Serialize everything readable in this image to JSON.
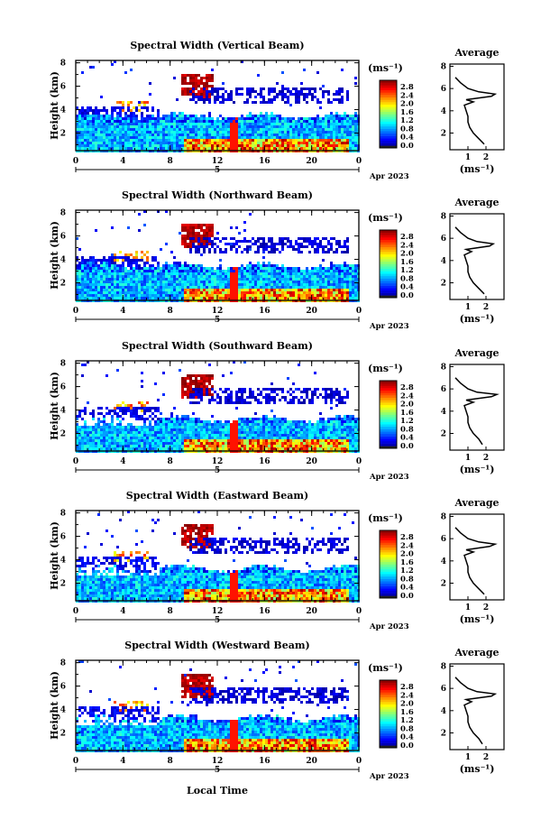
{
  "figure": {
    "date_day": "5",
    "date_label": "Apr 2023",
    "xlabel": "Local Time",
    "ylabel": "Height (km)",
    "colorbar_unit": "(ms⁻¹)",
    "average_title": "Average",
    "average_xlabel": "(ms⁻¹)"
  },
  "chart_data": [
    {
      "type": "heatmap",
      "title": "Spectral Width (Vertical Beam)",
      "xlabel": "Local Time",
      "ylabel": "Height (km)",
      "xlim": [
        0,
        24
      ],
      "ylim": [
        0.5,
        8.2
      ],
      "xticks": [
        "0",
        "4",
        "8",
        "12",
        "16",
        "20",
        "0"
      ],
      "yticks": [
        "2",
        "4",
        "6",
        "8"
      ],
      "colorbar": {
        "label": "(ms⁻¹)",
        "range": [
          0,
          2.8
        ],
        "ticks": [
          "2.8",
          "2.4",
          "2.0",
          "1.6",
          "1.2",
          "0.8",
          "0.4",
          "0.0"
        ]
      },
      "average_profile": {
        "title": "Average",
        "xlabel": "(ms⁻¹)",
        "xticks": [
          "1",
          "2"
        ],
        "yticks": [
          "2",
          "4",
          "6",
          "8"
        ],
        "height_km": [
          1.0,
          1.5,
          2.0,
          2.5,
          3.0,
          3.5,
          4.0,
          4.5,
          4.8,
          5.0,
          5.3,
          5.5,
          5.7,
          6.0,
          6.5,
          7.0
        ],
        "width_ms": [
          1.9,
          1.6,
          1.3,
          1.1,
          1.0,
          1.0,
          0.9,
          0.8,
          1.3,
          0.9,
          2.3,
          2.5,
          1.6,
          1.0,
          0.6,
          0.3
        ]
      }
    },
    {
      "type": "heatmap",
      "title": "Spectral Width (Northward Beam)",
      "xlabel": "Local Time",
      "ylabel": "Height (km)",
      "xlim": [
        0,
        24
      ],
      "ylim": [
        0.5,
        8.2
      ],
      "xticks": [
        "0",
        "4",
        "8",
        "12",
        "16",
        "20",
        "0"
      ],
      "yticks": [
        "2",
        "4",
        "6",
        "8"
      ],
      "colorbar": {
        "label": "(ms⁻¹)",
        "range": [
          0,
          2.8
        ],
        "ticks": [
          "2.8",
          "2.4",
          "2.0",
          "1.6",
          "1.2",
          "0.8",
          "0.4",
          "0.0"
        ]
      },
      "average_profile": {
        "title": "Average",
        "xlabel": "(ms⁻¹)",
        "xticks": [
          "1",
          "2"
        ],
        "yticks": [
          "2",
          "4",
          "6",
          "8"
        ],
        "height_km": [
          1.0,
          1.5,
          2.0,
          2.5,
          3.0,
          3.5,
          4.0,
          4.5,
          4.8,
          5.0,
          5.3,
          5.5,
          5.7,
          6.0,
          6.5,
          7.0
        ],
        "width_ms": [
          1.9,
          1.6,
          1.3,
          1.1,
          1.0,
          1.0,
          0.9,
          0.8,
          1.2,
          0.9,
          2.2,
          2.4,
          1.5,
          1.0,
          0.6,
          0.3
        ]
      }
    },
    {
      "type": "heatmap",
      "title": "Spectral Width (Southward Beam)",
      "xlabel": "Local Time",
      "ylabel": "Height (km)",
      "xlim": [
        0,
        24
      ],
      "ylim": [
        0.5,
        8.2
      ],
      "xticks": [
        "0",
        "4",
        "8",
        "12",
        "16",
        "20",
        "0"
      ],
      "yticks": [
        "2",
        "4",
        "6",
        "8"
      ],
      "colorbar": {
        "label": "(ms⁻¹)",
        "range": [
          0,
          2.8
        ],
        "ticks": [
          "2.8",
          "2.4",
          "2.0",
          "1.6",
          "1.2",
          "0.8",
          "0.4",
          "0.0"
        ]
      },
      "average_profile": {
        "title": "Average",
        "xlabel": "(ms⁻¹)",
        "xticks": [
          "1",
          "2"
        ],
        "yticks": [
          "2",
          "4",
          "6",
          "8"
        ],
        "height_km": [
          1.0,
          1.5,
          2.0,
          2.5,
          3.0,
          3.5,
          4.0,
          4.5,
          4.8,
          5.0,
          5.3,
          5.5,
          5.7,
          6.0,
          6.5,
          7.0
        ],
        "width_ms": [
          1.8,
          1.6,
          1.3,
          1.1,
          1.0,
          1.0,
          0.9,
          0.8,
          1.3,
          0.9,
          2.3,
          2.6,
          1.5,
          1.0,
          0.6,
          0.3
        ]
      }
    },
    {
      "type": "heatmap",
      "title": "Spectral Width (Eastward Beam)",
      "xlabel": "Local Time",
      "ylabel": "Height (km)",
      "xlim": [
        0,
        24
      ],
      "ylim": [
        0.5,
        8.2
      ],
      "xticks": [
        "0",
        "4",
        "8",
        "12",
        "16",
        "20",
        "0"
      ],
      "yticks": [
        "2",
        "4",
        "6",
        "8"
      ],
      "colorbar": {
        "label": "(ms⁻¹)",
        "range": [
          0,
          2.8
        ],
        "ticks": [
          "2.8",
          "2.4",
          "2.0",
          "1.6",
          "1.2",
          "0.8",
          "0.4",
          "0.0"
        ]
      },
      "average_profile": {
        "title": "Average",
        "xlabel": "(ms⁻¹)",
        "xticks": [
          "1",
          "2"
        ],
        "yticks": [
          "2",
          "4",
          "6",
          "8"
        ],
        "height_km": [
          1.0,
          1.5,
          2.0,
          2.5,
          3.0,
          3.5,
          4.0,
          4.5,
          4.8,
          5.0,
          5.3,
          5.5,
          5.7,
          6.0,
          6.5,
          7.0
        ],
        "width_ms": [
          1.9,
          1.6,
          1.3,
          1.1,
          1.0,
          1.0,
          0.9,
          0.8,
          1.3,
          0.9,
          2.2,
          2.5,
          1.6,
          1.0,
          0.6,
          0.3
        ]
      }
    },
    {
      "type": "heatmap",
      "title": "Spectral Width (Westward Beam)",
      "xlabel": "Local Time",
      "ylabel": "Height (km)",
      "xlim": [
        0,
        24
      ],
      "ylim": [
        0.5,
        8.2
      ],
      "xticks": [
        "0",
        "4",
        "8",
        "12",
        "16",
        "20",
        "0"
      ],
      "yticks": [
        "2",
        "4",
        "6",
        "8"
      ],
      "colorbar": {
        "label": "(ms⁻¹)",
        "range": [
          0,
          2.8
        ],
        "ticks": [
          "2.8",
          "2.4",
          "2.0",
          "1.6",
          "1.2",
          "0.8",
          "0.4",
          "0.0"
        ]
      },
      "average_profile": {
        "title": "Average",
        "xlabel": "(ms⁻¹)",
        "xticks": [
          "1",
          "2"
        ],
        "yticks": [
          "2",
          "4",
          "6",
          "8"
        ],
        "height_km": [
          1.0,
          1.5,
          2.0,
          2.5,
          3.0,
          3.5,
          4.0,
          4.5,
          4.8,
          5.0,
          5.3,
          5.5,
          5.7,
          6.0,
          6.5,
          7.0
        ],
        "width_ms": [
          1.8,
          1.6,
          1.3,
          1.1,
          1.0,
          1.0,
          0.9,
          0.8,
          1.2,
          0.9,
          2.3,
          2.5,
          1.5,
          1.0,
          0.6,
          0.3
        ]
      }
    }
  ]
}
